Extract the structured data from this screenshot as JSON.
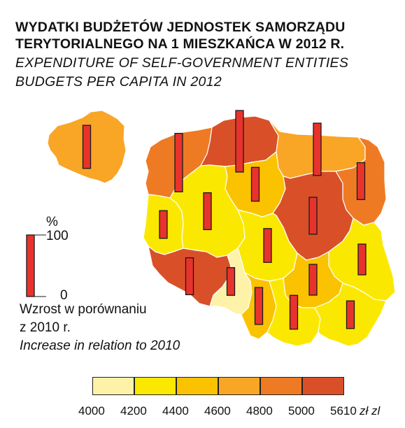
{
  "title": {
    "pl_line1": "WYDATKI BUDŻETÓW JEDNOSTEK SAMORZĄDU",
    "pl_line2": "TERYTORIALNEGO NA 1 MIESZKAŃCA W 2012 R.",
    "en_line1": "EXPENDITURE OF SELF-GOVERNMENT ENTITIES",
    "en_line2": "BUDGETS PER CAPITA IN 2012"
  },
  "bar_legend": {
    "unit": "%",
    "max_label": "100",
    "min_label": "0",
    "text_pl_1": "Wzrost w porównaniu",
    "text_pl_2": "z 2010 r.",
    "text_en": "Increase in relation to 2010"
  },
  "color_scale": {
    "classes": [
      "#fdf2a8",
      "#fbe800",
      "#fbc200",
      "#f9a526",
      "#ef7a24",
      "#d95028"
    ],
    "tick_labels": [
      "4000",
      "4200",
      "4400",
      "4600",
      "4800",
      "5000",
      "5610"
    ],
    "unit": "zł zl"
  },
  "colors": {
    "bar_fill": "#e8332d",
    "bar_stroke": "#1a1a1a",
    "border": "#ffffff"
  },
  "map_data": {
    "type": "choropleth",
    "regions": [
      {
        "id": "zachodniopomorskie",
        "class": 4,
        "bar_pct": 95
      },
      {
        "id": "pomorskie",
        "class": 5,
        "bar_pct": 100
      },
      {
        "id": "warminsko-mazurskie",
        "class": 3,
        "bar_pct": 85
      },
      {
        "id": "podlaskie",
        "class": 4,
        "bar_pct": 60
      },
      {
        "id": "lubuskie",
        "class": 1,
        "bar_pct": 45
      },
      {
        "id": "wielkopolskie",
        "class": 1,
        "bar_pct": 60
      },
      {
        "id": "kujawsko-pomorskie",
        "class": 2,
        "bar_pct": 55
      },
      {
        "id": "mazowieckie",
        "class": 5,
        "bar_pct": 60
      },
      {
        "id": "lodzkie",
        "class": 1,
        "bar_pct": 55
      },
      {
        "id": "lubelskie",
        "class": 1,
        "bar_pct": 50
      },
      {
        "id": "dolnoslaskie",
        "class": 5,
        "bar_pct": 60
      },
      {
        "id": "opolskie",
        "class": 0,
        "bar_pct": 45
      },
      {
        "id": "slaskie",
        "class": 2,
        "bar_pct": 60
      },
      {
        "id": "swietokrzyskie",
        "class": 2,
        "bar_pct": 50
      },
      {
        "id": "malopolskie",
        "class": 1,
        "bar_pct": 55
      },
      {
        "id": "podkarpackie",
        "class": 1,
        "bar_pct": 45
      }
    ],
    "inset": {
      "id": "poland-total",
      "class": 3,
      "bar_pct": 70
    }
  }
}
